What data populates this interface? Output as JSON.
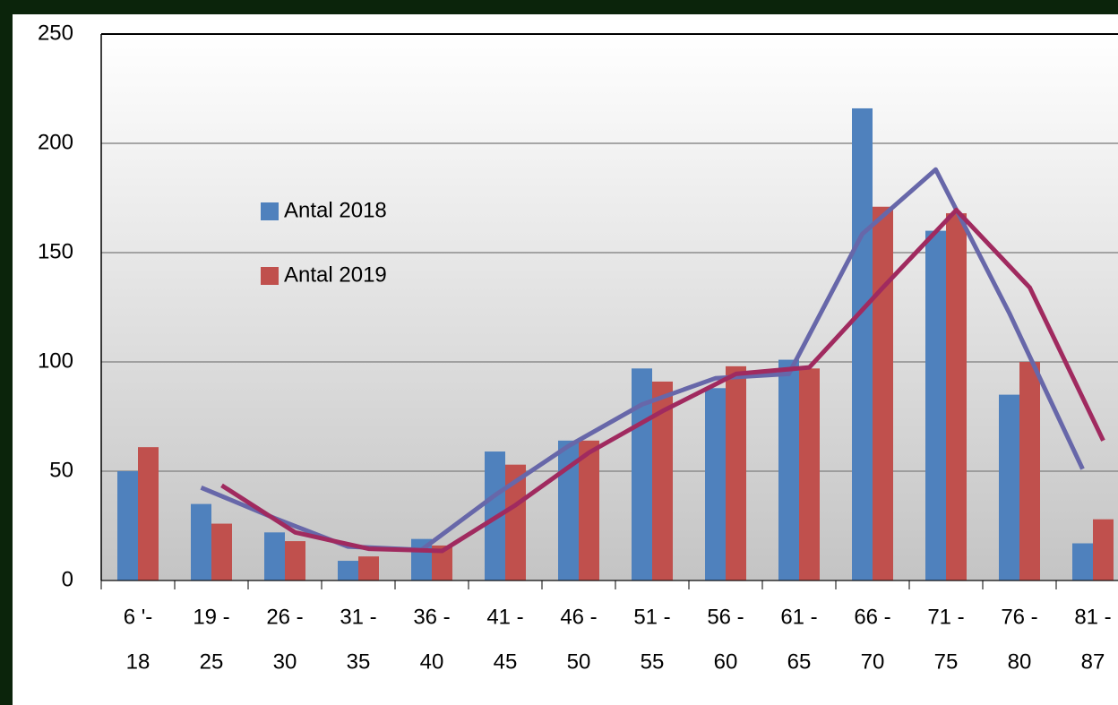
{
  "chart_data": {
    "type": "bar",
    "categories": [
      [
        "6 '-",
        "18"
      ],
      [
        "19 -",
        "25"
      ],
      [
        "26 -",
        "30"
      ],
      [
        "31 -",
        "35"
      ],
      [
        "36 -",
        "40"
      ],
      [
        "41 -",
        "45"
      ],
      [
        "46 -",
        "50"
      ],
      [
        "51 -",
        "55"
      ],
      [
        "56 -",
        "60"
      ],
      [
        "61 -",
        "65"
      ],
      [
        "66 -",
        "70"
      ],
      [
        "71 -",
        "75"
      ],
      [
        "76 -",
        "80"
      ],
      [
        "81 -",
        "87"
      ]
    ],
    "series": [
      {
        "name": "Antal 2018",
        "color": "#4f81bd",
        "values": [
          50,
          35,
          22,
          9,
          19,
          59,
          64,
          97,
          88,
          101,
          216,
          160,
          85,
          17
        ]
      },
      {
        "name": "Antal 2019",
        "color": "#c0504d",
        "values": [
          61,
          26,
          18,
          11,
          16,
          53,
          64,
          91,
          98,
          97,
          171,
          168,
          100,
          28
        ]
      }
    ],
    "trendlines": [
      {
        "color": "#6767a9",
        "values": [
          null,
          42.5,
          28.5,
          15.5,
          14,
          39,
          61.5,
          80.5,
          92.5,
          94.5,
          158.5,
          188,
          122.5,
          51
        ]
      },
      {
        "color": "#a02a5f",
        "values": [
          null,
          43.5,
          22,
          14.5,
          13.5,
          34.5,
          58.5,
          77.5,
          94.5,
          97.5,
          134,
          169.5,
          134,
          64
        ]
      }
    ],
    "ylim": [
      0,
      250
    ],
    "yticks": [
      0,
      50,
      100,
      150,
      200,
      250
    ],
    "grid": true
  }
}
